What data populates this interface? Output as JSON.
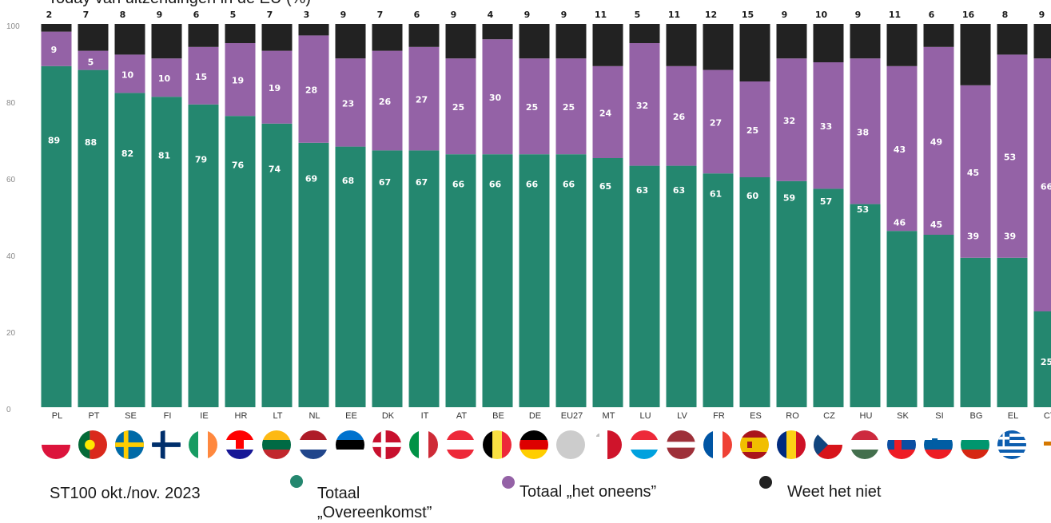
{
  "title": "Today van uitzendingen in de EU (%)",
  "source_note": "ST100 okt./nov. 2023",
  "colors": {
    "agree": "#24876f",
    "disagree": "#9462a6",
    "dont_know": "#222222"
  },
  "legend": {
    "agree": "Totaal „Overeenkomst”",
    "disagree": "Totaal „het oneens”",
    "dont_know": "Weet het niet"
  },
  "chart_data": {
    "type": "bar",
    "stacked": true,
    "ylim": [
      0,
      100
    ],
    "yticks": [
      0,
      20,
      40,
      60,
      80,
      100
    ],
    "categories": [
      "PL",
      "PT",
      "SE",
      "FI",
      "IE",
      "HR",
      "LT",
      "NL",
      "EE",
      "DK",
      "IT",
      "AT",
      "BE",
      "DE",
      "EU27",
      "MT",
      "LU",
      "LV",
      "FR",
      "ES",
      "RO",
      "CZ",
      "HU",
      "SK",
      "SI",
      "BG",
      "EL",
      "CY"
    ],
    "series": [
      {
        "name": "Totaal „Overeenkomst”",
        "values": [
          89,
          88,
          82,
          81,
          79,
          76,
          74,
          69,
          68,
          67,
          67,
          66,
          66,
          66,
          66,
          65,
          63,
          63,
          61,
          60,
          59,
          57,
          53,
          46,
          45,
          39,
          39,
          25
        ]
      },
      {
        "name": "Totaal „het oneens”",
        "values": [
          9,
          5,
          10,
          10,
          15,
          19,
          19,
          28,
          23,
          26,
          27,
          25,
          30,
          25,
          25,
          24,
          32,
          26,
          27,
          25,
          32,
          33,
          38,
          43,
          49,
          45,
          53,
          66
        ]
      },
      {
        "name": "Weet het niet",
        "values": [
          2,
          7,
          8,
          9,
          6,
          5,
          7,
          3,
          9,
          7,
          6,
          9,
          4,
          9,
          9,
          11,
          5,
          11,
          12,
          15,
          9,
          10,
          9,
          11,
          6,
          16,
          8,
          9
        ]
      }
    ],
    "flag_icons": [
      "flag-pl",
      "flag-pt",
      "flag-se",
      "flag-fi",
      "flag-ie",
      "flag-hr",
      "flag-lt",
      "flag-nl",
      "flag-ee",
      "flag-dk",
      "flag-it",
      "flag-at",
      "flag-be",
      "flag-de",
      "flag-eu",
      "flag-mt",
      "flag-lu",
      "flag-lv",
      "flag-fr",
      "flag-es",
      "flag-ro",
      "flag-cz",
      "flag-hu",
      "flag-sk",
      "flag-si",
      "flag-bg",
      "flag-el",
      "flag-cy"
    ]
  }
}
